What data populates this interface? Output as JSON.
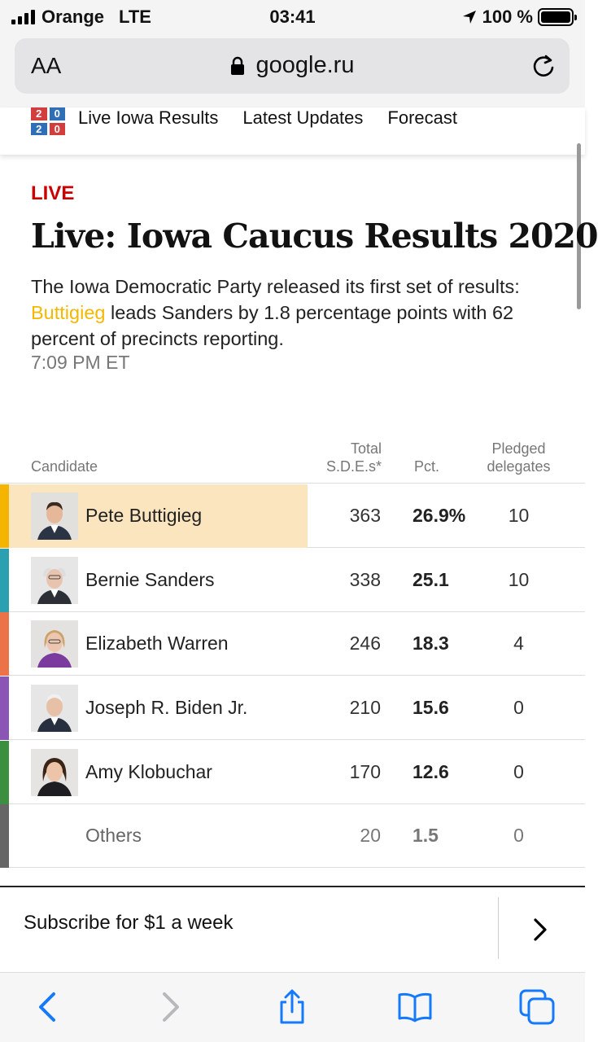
{
  "status_bar": {
    "carrier": "Orange",
    "network": "LTE",
    "time": "03:41",
    "battery": "100 %"
  },
  "browser": {
    "text_size_label": "AA",
    "domain": "google.ru"
  },
  "site_nav": {
    "logo_digits": [
      "2",
      "0",
      "2",
      "0"
    ],
    "items": [
      "Live Iowa Results",
      "Latest Updates",
      "Forecast"
    ]
  },
  "article": {
    "kicker": "LIVE",
    "headline": "Live: Iowa Caucus Results 2020",
    "summary_before": "The Iowa Democratic Party released its first set of results: ",
    "summary_highlight": "Buttigieg",
    "summary_after": " leads Sanders by 1.8 percentage points with 62 percent of precincts reporting.",
    "timestamp": "7:09 PM ET"
  },
  "table": {
    "headers": {
      "candidate": "Candidate",
      "sde_line1": "Total",
      "sde_line2": "S.D.E.s*",
      "pct": "Pct.",
      "del_line1": "Pledged",
      "del_line2": "delegates"
    },
    "rows": [
      {
        "name": "Pete Buttigieg",
        "sde": "363",
        "pct": "26.9%",
        "delegates": "10",
        "color": "#f5b400",
        "leader": true
      },
      {
        "name": "Bernie Sanders",
        "sde": "338",
        "pct": "25.1",
        "delegates": "10",
        "color": "#2aa0b0"
      },
      {
        "name": "Elizabeth Warren",
        "sde": "246",
        "pct": "18.3",
        "delegates": "4",
        "color": "#ec7347"
      },
      {
        "name": "Joseph R. Biden Jr.",
        "sde": "210",
        "pct": "15.6",
        "delegates": "0",
        "color": "#8a55b5"
      },
      {
        "name": "Amy Klobuchar",
        "sde": "170",
        "pct": "12.6",
        "delegates": "0",
        "color": "#3c8f40"
      },
      {
        "name": "Others",
        "sde": "20",
        "pct": "1.5",
        "delegates": "0",
        "color": "#666666"
      }
    ]
  },
  "subscribe": {
    "text": "Subscribe for $1 a week"
  },
  "colors": {
    "accent_live": "#cc0000",
    "highlight": "#f5b800",
    "ios_blue": "#1479fb"
  }
}
